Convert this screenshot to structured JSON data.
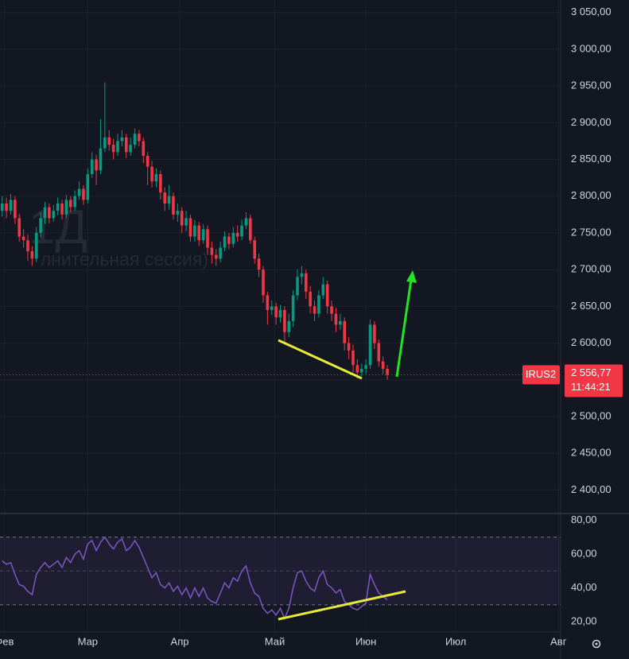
{
  "chart_data": [
    {
      "type": "candlestick",
      "symbol": "IRUS2",
      "last_price": {
        "value": 2556.77,
        "label": "2 556,77"
      },
      "time_label": "11:44:21",
      "watermark": [
        "1Д",
        "лнительная сессия)"
      ],
      "up_color": "#089981",
      "down_color": "#f23645",
      "x": [
        0,
        1,
        2,
        3,
        4,
        5,
        6,
        7,
        8,
        9,
        10,
        11,
        12,
        13,
        14,
        15,
        16,
        17,
        18,
        19,
        20,
        21,
        22,
        23,
        24,
        25,
        26,
        27,
        28,
        29,
        30,
        31,
        32,
        33,
        34,
        35,
        36,
        37,
        38,
        39,
        40,
        41,
        42,
        43,
        44,
        45,
        46,
        47,
        48,
        49,
        50,
        51,
        52,
        53,
        54,
        55,
        56,
        57,
        58,
        59,
        60,
        61,
        62,
        63,
        64,
        65,
        66,
        67,
        68,
        69,
        70,
        71,
        72,
        73,
        74,
        75,
        76,
        77,
        78,
        79,
        80,
        81,
        82,
        83,
        84,
        85,
        86,
        87,
        88,
        89,
        90
      ],
      "open": [
        2780,
        2790,
        2780,
        2795,
        2770,
        2745,
        2740,
        2725,
        2715,
        2750,
        2770,
        2785,
        2770,
        2780,
        2790,
        2775,
        2795,
        2785,
        2800,
        2810,
        2795,
        2830,
        2850,
        2835,
        2865,
        2880,
        2870,
        2860,
        2875,
        2880,
        2860,
        2870,
        2885,
        2875,
        2855,
        2840,
        2820,
        2830,
        2805,
        2790,
        2800,
        2775,
        2780,
        2760,
        2770,
        2745,
        2760,
        2740,
        2755,
        2730,
        2720,
        2715,
        2730,
        2745,
        2735,
        2750,
        2745,
        2760,
        2770,
        2740,
        2715,
        2700,
        2665,
        2645,
        2650,
        2635,
        2645,
        2615,
        2630,
        2665,
        2690,
        2695,
        2670,
        2650,
        2640,
        2665,
        2680,
        2650,
        2640,
        2625,
        2630,
        2600,
        2590,
        2570,
        2560,
        2565,
        2570,
        2625,
        2600,
        2575,
        2565
      ],
      "high": [
        2800,
        2798,
        2803,
        2800,
        2776,
        2755,
        2748,
        2732,
        2758,
        2778,
        2792,
        2790,
        2788,
        2798,
        2795,
        2802,
        2800,
        2808,
        2820,
        2815,
        2838,
        2860,
        2856,
        2905,
        2955,
        2890,
        2878,
        2885,
        2890,
        2885,
        2880,
        2892,
        2890,
        2880,
        2860,
        2848,
        2838,
        2835,
        2812,
        2815,
        2805,
        2790,
        2785,
        2780,
        2775,
        2768,
        2765,
        2762,
        2760,
        2738,
        2728,
        2738,
        2752,
        2750,
        2758,
        2760,
        2768,
        2778,
        2775,
        2745,
        2722,
        2705,
        2670,
        2658,
        2655,
        2652,
        2650,
        2640,
        2672,
        2700,
        2705,
        2700,
        2678,
        2658,
        2672,
        2690,
        2685,
        2658,
        2648,
        2640,
        2635,
        2608,
        2598,
        2578,
        2572,
        2578,
        2632,
        2630,
        2605,
        2582,
        2570
      ],
      "low": [
        2772,
        2770,
        2775,
        2762,
        2738,
        2730,
        2712,
        2705,
        2710,
        2744,
        2762,
        2763,
        2765,
        2774,
        2768,
        2770,
        2778,
        2780,
        2795,
        2788,
        2790,
        2825,
        2815,
        2830,
        2860,
        2862,
        2850,
        2855,
        2868,
        2852,
        2855,
        2865,
        2868,
        2845,
        2815,
        2812,
        2812,
        2795,
        2780,
        2782,
        2768,
        2765,
        2750,
        2752,
        2738,
        2738,
        2732,
        2735,
        2720,
        2708,
        2705,
        2710,
        2725,
        2728,
        2730,
        2738,
        2740,
        2755,
        2735,
        2708,
        2690,
        2655,
        2625,
        2638,
        2625,
        2628,
        2598,
        2608,
        2622,
        2658,
        2680,
        2660,
        2640,
        2630,
        2635,
        2660,
        2640,
        2630,
        2615,
        2618,
        2590,
        2578,
        2560,
        2552,
        2555,
        2558,
        2565,
        2592,
        2568,
        2558,
        2550
      ],
      "close": [
        2790,
        2780,
        2795,
        2770,
        2745,
        2740,
        2725,
        2715,
        2750,
        2770,
        2785,
        2770,
        2780,
        2790,
        2775,
        2795,
        2785,
        2800,
        2810,
        2795,
        2830,
        2850,
        2835,
        2865,
        2880,
        2870,
        2860,
        2875,
        2880,
        2860,
        2870,
        2885,
        2875,
        2855,
        2840,
        2820,
        2830,
        2805,
        2790,
        2800,
        2775,
        2780,
        2760,
        2770,
        2745,
        2760,
        2740,
        2755,
        2730,
        2720,
        2715,
        2730,
        2745,
        2735,
        2750,
        2745,
        2760,
        2770,
        2740,
        2715,
        2700,
        2665,
        2645,
        2650,
        2635,
        2645,
        2615,
        2630,
        2665,
        2690,
        2695,
        2670,
        2650,
        2640,
        2665,
        2680,
        2650,
        2640,
        2625,
        2630,
        2600,
        2590,
        2570,
        2560,
        2565,
        2570,
        2625,
        2600,
        2575,
        2565,
        2556.77
      ],
      "xlim": [
        -0.5,
        130.5
      ],
      "ylim": [
        2368,
        3067
      ],
      "yticks": [
        {
          "value": 2400,
          "label": "2 400,00"
        },
        {
          "value": 2450,
          "label": "2 450,00"
        },
        {
          "value": 2500,
          "label": "2 500,00"
        },
        {
          "value": 2550,
          "label": "2 550,00"
        },
        {
          "value": 2600,
          "label": "2 600,00"
        },
        {
          "value": 2650,
          "label": "2 650,00"
        },
        {
          "value": 2700,
          "label": "2 700,00"
        },
        {
          "value": 2750,
          "label": "2 750,00"
        },
        {
          "value": 2800,
          "label": "2 800,00"
        },
        {
          "value": 2850,
          "label": "2 850,00"
        },
        {
          "value": 2900,
          "label": "2 900,00"
        },
        {
          "value": 2950,
          "label": "2 950,00"
        },
        {
          "value": 3000,
          "label": "3 000,00"
        },
        {
          "value": 3050,
          "label": "3 050,00"
        }
      ]
    },
    {
      "type": "line",
      "color": "#7e57c2",
      "band": [
        30,
        70
      ],
      "midline": 50,
      "values": [
        56,
        54,
        55,
        48,
        42,
        41,
        38,
        36,
        48,
        52,
        55,
        52,
        54,
        56,
        52,
        58,
        55,
        60,
        62,
        57,
        66,
        68,
        62,
        67,
        70,
        66,
        63,
        67,
        69,
        62,
        64,
        68,
        64,
        58,
        52,
        46,
        49,
        42,
        40,
        43,
        38,
        41,
        36,
        40,
        34,
        40,
        35,
        40,
        34,
        32,
        31,
        37,
        43,
        40,
        46,
        44,
        50,
        53,
        43,
        37,
        35,
        28,
        25,
        27,
        24,
        28,
        22,
        28,
        40,
        49,
        50,
        44,
        40,
        38,
        46,
        50,
        42,
        40,
        37,
        39,
        32,
        30,
        28,
        27,
        29,
        31,
        48,
        42,
        37,
        35,
        33
      ],
      "xlim": [
        -0.5,
        130.5
      ],
      "ylim": [
        14,
        83
      ],
      "yticks": [
        {
          "value": 20,
          "label": "20,00"
        },
        {
          "value": 40,
          "label": "40,00"
        },
        {
          "value": 60,
          "label": "60,00"
        },
        {
          "value": 80,
          "label": "80,00"
        }
      ],
      "xticks": [
        {
          "value": 0.5,
          "label": "Фев"
        },
        {
          "value": 20,
          "label": "Мар"
        },
        {
          "value": 41.5,
          "label": "Апр"
        },
        {
          "value": 63.7,
          "label": "Май"
        },
        {
          "value": 85,
          "label": "Июн"
        },
        {
          "value": 106,
          "label": "Июл"
        },
        {
          "value": 130,
          "label": "Авг"
        }
      ]
    }
  ]
}
